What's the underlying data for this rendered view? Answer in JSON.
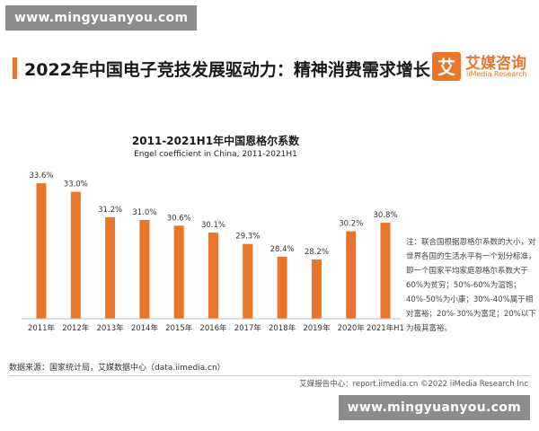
{
  "watermark": {
    "top": "www.mingyuanyou.com",
    "bottom": "www.mingyuanyou.com"
  },
  "header": {
    "title": "2022年中国电子竞技发展驱动力：精神消费需求增长",
    "logo_glyph": "艾",
    "logo_cn": "艾媒咨询",
    "logo_en": "iiMedia Research"
  },
  "chart_data": {
    "type": "bar",
    "title": "2011-2021H1年中国恩格尔系数",
    "subtitle": "Engel coefficient in China, 2011-2021H1",
    "categories": [
      "2011年",
      "2012年",
      "2013年",
      "2014年",
      "2015年",
      "2016年",
      "2017年",
      "2018年",
      "2019年",
      "2020年",
      "2021年H1"
    ],
    "values": [
      33.6,
      33.0,
      31.2,
      31.0,
      30.6,
      30.1,
      29.3,
      28.4,
      28.2,
      30.2,
      30.8
    ],
    "value_labels": [
      "33.6%",
      "33.0%",
      "31.2%",
      "31.0%",
      "30.6%",
      "30.1%",
      "29.3%",
      "28.4%",
      "28.2%",
      "30.2%",
      "30.8%"
    ],
    "unit": "%",
    "ylim": [
      24,
      34.5
    ],
    "bar_color": "#e8752a",
    "grid": false,
    "legend": "none"
  },
  "note": "注：联合国根据恩格尔系数的大小，对世界各国的生活水平有一个划分标准，即一个国家平均家庭恩格尔系数大于60%为贫穷；50%-60%为温饱；40%-50%为小康；30%-40%属于相对富裕；20%-30%为富足；20%以下为极其富裕。",
  "source": "数据来源：国家统计局，艾媒数据中心（data.iimedia.cn）",
  "footer": "艾媒报告中心：report.iimedia.cn  ©2022  iiMedia Research  Inc",
  "colors": {
    "accent": "#e8752a",
    "watermark_bg": "#8c8c8c"
  }
}
